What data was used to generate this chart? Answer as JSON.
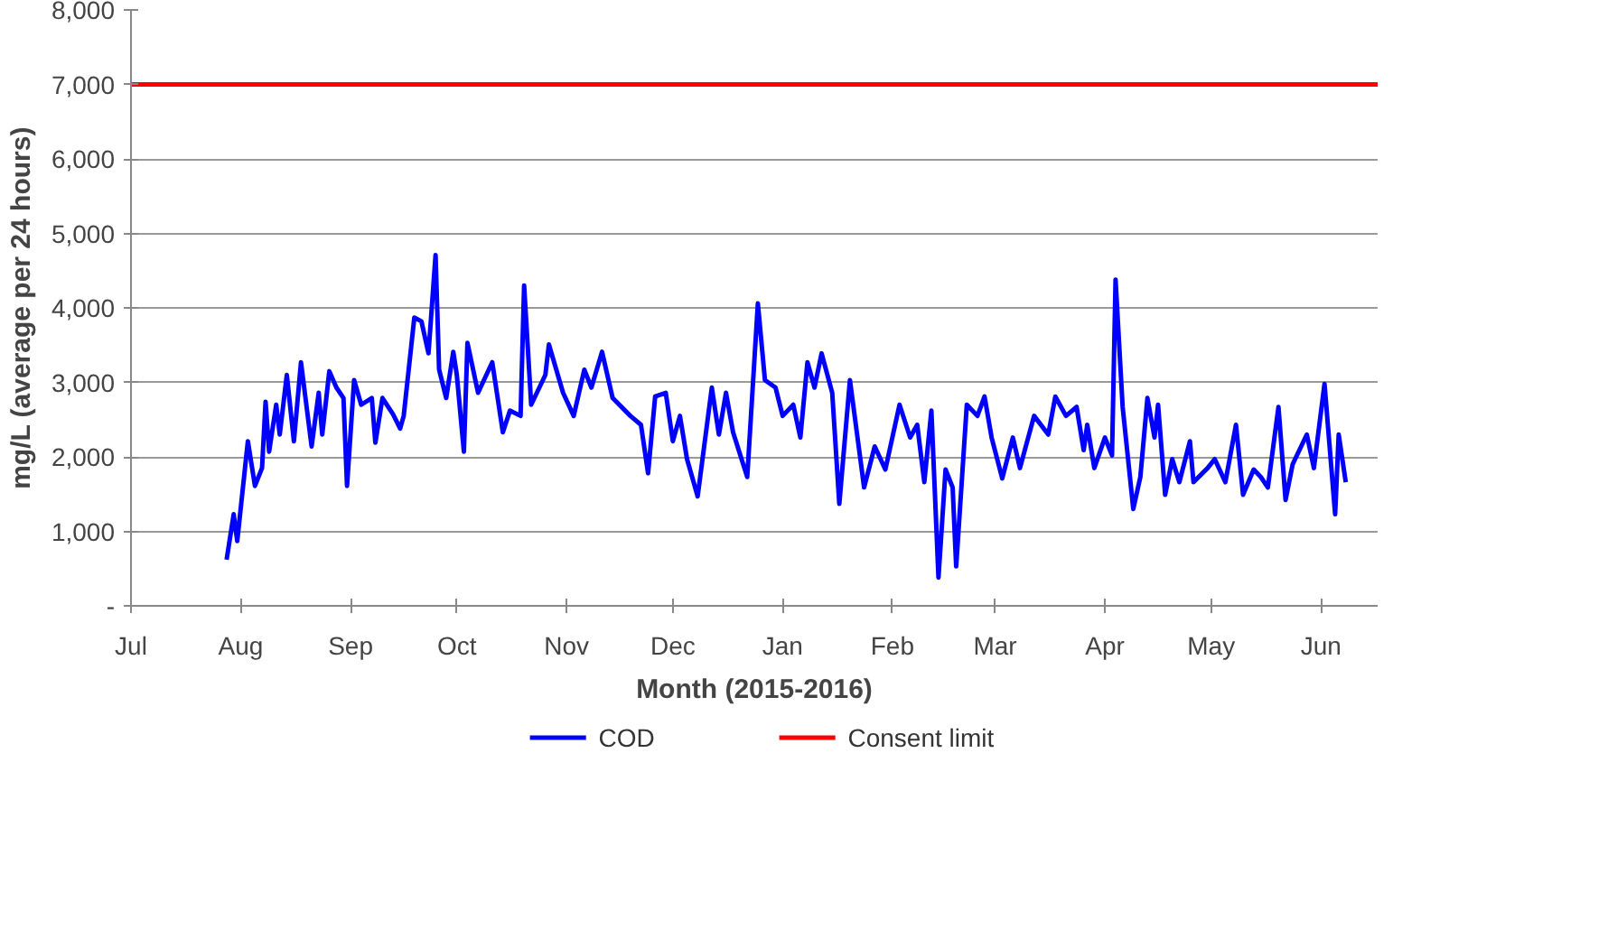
{
  "chart_data": {
    "type": "line",
    "xlabel": "Month (2015-2016)",
    "ylabel": "mg/L (average per 24 hours)",
    "xlim": [
      "2015-07-01",
      "2016-06-17"
    ],
    "xticks": [
      {
        "value": "2015-07-01",
        "label": "Jul"
      },
      {
        "value": "2015-08-01",
        "label": "Aug"
      },
      {
        "value": "2015-09-01",
        "label": "Sep"
      },
      {
        "value": "2015-10-01",
        "label": "Oct"
      },
      {
        "value": "2015-11-01",
        "label": "Nov"
      },
      {
        "value": "2015-12-01",
        "label": "Dec"
      },
      {
        "value": "2016-01-01",
        "label": "Jan"
      },
      {
        "value": "2016-02-01",
        "label": "Feb"
      },
      {
        "value": "2016-03-01",
        "label": "Mar"
      },
      {
        "value": "2016-04-01",
        "label": "Apr"
      },
      {
        "value": "2016-05-01",
        "label": "May"
      },
      {
        "value": "2016-06-01",
        "label": "Jun"
      }
    ],
    "ylim": [
      0,
      8000
    ],
    "yticks": [
      {
        "value": 0,
        "label": "-"
      },
      {
        "value": 1000,
        "label": "1,000"
      },
      {
        "value": 2000,
        "label": "2,000"
      },
      {
        "value": 3000,
        "label": "3,000"
      },
      {
        "value": 4000,
        "label": "4,000"
      },
      {
        "value": 5000,
        "label": "5,000"
      },
      {
        "value": 6000,
        "label": "6,000"
      },
      {
        "value": 7000,
        "label": "7,000"
      },
      {
        "value": 8000,
        "label": "8,000"
      }
    ],
    "grid": "y",
    "legend": "bottom",
    "marker": "none",
    "line_style": "solid",
    "x": [
      "2015-07-28",
      "2015-07-30",
      "2015-07-31",
      "2015-08-03",
      "2015-08-05",
      "2015-08-07",
      "2015-08-08",
      "2015-08-09",
      "2015-08-11",
      "2015-08-12",
      "2015-08-14",
      "2015-08-16",
      "2015-08-18",
      "2015-08-21",
      "2015-08-23",
      "2015-08-24",
      "2015-08-26",
      "2015-08-28",
      "2015-08-30",
      "2015-08-31",
      "2015-09-02",
      "2015-09-04",
      "2015-09-07",
      "2015-09-08",
      "2015-09-10",
      "2015-09-13",
      "2015-09-15",
      "2015-09-16",
      "2015-09-19",
      "2015-09-21",
      "2015-09-23",
      "2015-09-25",
      "2015-09-26",
      "2015-09-28",
      "2015-09-30",
      "2015-10-01",
      "2015-10-03",
      "2015-10-04",
      "2015-10-07",
      "2015-10-11",
      "2015-10-14",
      "2015-10-16",
      "2015-10-19",
      "2015-10-20",
      "2015-10-22",
      "2015-10-26",
      "2015-10-27",
      "2015-10-31",
      "2015-11-03",
      "2015-11-06",
      "2015-11-08",
      "2015-11-11",
      "2015-11-14",
      "2015-11-19",
      "2015-11-22",
      "2015-11-24",
      "2015-11-26",
      "2015-11-29",
      "2015-12-01",
      "2015-12-03",
      "2015-12-05",
      "2015-12-08",
      "2015-12-12",
      "2015-12-14",
      "2015-12-16",
      "2015-12-18",
      "2015-12-22",
      "2015-12-25",
      "2015-12-27",
      "2015-12-30",
      "2016-01-01",
      "2016-01-04",
      "2016-01-06",
      "2016-01-08",
      "2016-01-10",
      "2016-01-12",
      "2016-01-15",
      "2016-01-17",
      "2016-01-20",
      "2016-01-24",
      "2016-01-27",
      "2016-01-30",
      "2016-02-03",
      "2016-02-06",
      "2016-02-08",
      "2016-02-10",
      "2016-02-12",
      "2016-02-14",
      "2016-02-16",
      "2016-02-18",
      "2016-02-19",
      "2016-02-22",
      "2016-02-25",
      "2016-02-27",
      "2016-02-29",
      "2016-03-03",
      "2016-03-06",
      "2016-03-08",
      "2016-03-12",
      "2016-03-16",
      "2016-03-18",
      "2016-03-21",
      "2016-03-24",
      "2016-03-26",
      "2016-03-27",
      "2016-03-29",
      "2016-04-01",
      "2016-04-03",
      "2016-04-04",
      "2016-04-06",
      "2016-04-09",
      "2016-04-11",
      "2016-04-13",
      "2016-04-15",
      "2016-04-16",
      "2016-04-18",
      "2016-04-20",
      "2016-04-22",
      "2016-04-25",
      "2016-04-26",
      "2016-04-30",
      "2016-05-02",
      "2016-05-05",
      "2016-05-08",
      "2016-05-10",
      "2016-05-13",
      "2016-05-15",
      "2016-05-17",
      "2016-05-20",
      "2016-05-22",
      "2016-05-24",
      "2016-05-28",
      "2016-05-30",
      "2016-06-02",
      "2016-06-05",
      "2016-06-06",
      "2016-06-08"
    ],
    "series": [
      {
        "name": "COD",
        "color": "#0000ff",
        "values": [
          620,
          1230,
          870,
          2210,
          1610,
          1850,
          2740,
          2070,
          2700,
          2300,
          3100,
          2210,
          3270,
          2140,
          2860,
          2300,
          3150,
          2930,
          2790,
          1610,
          3030,
          2700,
          2790,
          2190,
          2790,
          2570,
          2380,
          2550,
          3870,
          3820,
          3390,
          4710,
          3170,
          2790,
          3410,
          3100,
          2070,
          3530,
          2860,
          3270,
          2330,
          2620,
          2550,
          4300,
          2700,
          3100,
          3510,
          2860,
          2550,
          3170,
          2930,
          3410,
          2790,
          2550,
          2430,
          1780,
          2810,
          2860,
          2210,
          2550,
          1970,
          1470,
          2930,
          2300,
          2860,
          2330,
          1730,
          4060,
          3030,
          2930,
          2550,
          2700,
          2260,
          3270,
          2930,
          3390,
          2860,
          1370,
          3030,
          1590,
          2140,
          1830,
          2700,
          2260,
          2430,
          1660,
          2620,
          380,
          1830,
          1590,
          530,
          2700,
          2550,
          2810,
          2260,
          1710,
          2260,
          1850,
          2550,
          2300,
          2810,
          2550,
          2670,
          2090,
          2430,
          1850,
          2260,
          2020,
          4380,
          2670,
          1300,
          1730,
          2790,
          2260,
          2700,
          1490,
          1970,
          1660,
          2210,
          1660,
          1850,
          1970,
          1660,
          2430,
          1490,
          1830,
          1730,
          1590,
          2670,
          1420,
          1900,
          2300,
          1850,
          2980,
          1230,
          2300,
          1660
        ]
      }
    ],
    "ref_lines": [
      {
        "axis": "y",
        "value": 7000,
        "label": "Consent limit",
        "color": "#ff0000",
        "line_style": "solid"
      }
    ]
  }
}
